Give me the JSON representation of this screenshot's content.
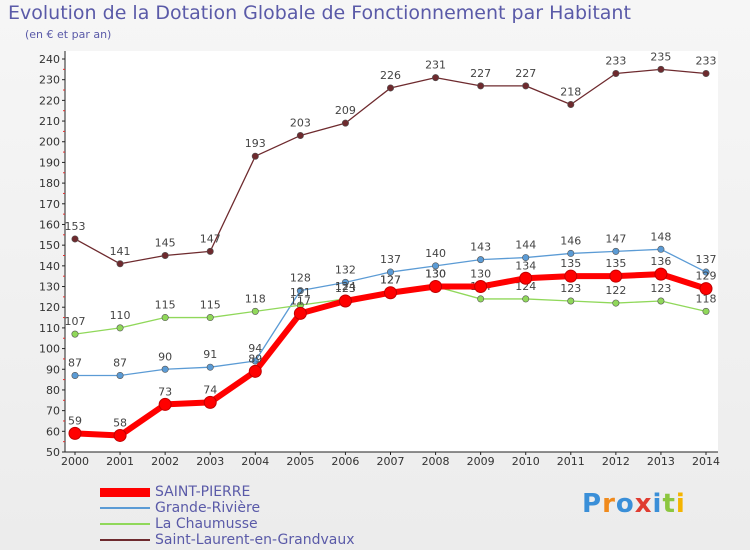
{
  "title": "Evolution de la Dotation Globale de Fonctionnement par Habitant",
  "subtitle": "(en € et par an)",
  "logo_text": "Proxiti",
  "chart_data": {
    "type": "line",
    "title": "Evolution de la Dotation Globale de Fonctionnement par Habitant",
    "ylabel": "(en € et par an)",
    "xlabel": "",
    "ylim": [
      50,
      240
    ],
    "ytick_step": 10,
    "grid": false,
    "x": [
      "2000",
      "2001",
      "2002",
      "2003",
      "2004",
      "2005",
      "2006",
      "2007",
      "2008",
      "2009",
      "2010",
      "2011",
      "2012",
      "2013",
      "2014"
    ],
    "series": [
      {
        "name": "Saint-Laurent-en-Grandvaux",
        "color": "#6e2a2e",
        "values": [
          153,
          141,
          145,
          147,
          193,
          203,
          209,
          226,
          231,
          227,
          227,
          218,
          233,
          235,
          233
        ],
        "labels": [
          "153",
          "141",
          "145",
          "147",
          "193",
          "203",
          "209",
          "226",
          "231",
          "227",
          "227",
          "218",
          "233",
          "235",
          "233"
        ]
      },
      {
        "name": "Grande-Rivière",
        "color": "#5b9bd5",
        "values": [
          87,
          87,
          90,
          91,
          94,
          128,
          132,
          137,
          140,
          143,
          144,
          146,
          147,
          148,
          137
        ],
        "labels": [
          "87",
          "87",
          "90",
          "91",
          "94",
          "128",
          "132",
          "137",
          "140",
          "143",
          "144",
          "146",
          "147",
          "148",
          "137"
        ]
      },
      {
        "name": "La Chaumusse",
        "color": "#90d85a",
        "values": [
          107,
          110,
          115,
          115,
          118,
          121,
          124,
          127,
          130,
          124,
          124,
          123,
          122,
          123,
          118
        ],
        "labels": [
          "107",
          "110",
          "115",
          "115",
          "118",
          "121",
          "124",
          "127",
          "130",
          "124",
          "124",
          "123",
          "122",
          "123",
          "118"
        ]
      },
      {
        "name": "SAINT-PIERRE",
        "color": "#ff0000",
        "values": [
          59,
          58,
          73,
          74,
          89,
          117,
          123,
          127,
          130,
          130,
          134,
          135,
          135,
          136,
          129
        ],
        "labels": [
          "59",
          "58",
          "73",
          "74",
          "89",
          "117",
          "123",
          "127",
          "130",
          "130",
          "134",
          "135",
          "135",
          "136",
          "129"
        ]
      }
    ]
  },
  "legend": [
    {
      "name": "SAINT-PIERRE",
      "color": "#ff0000"
    },
    {
      "name": "Grande-Rivière",
      "color": "#5b9bd5"
    },
    {
      "name": "La Chaumusse",
      "color": "#90d85a"
    },
    {
      "name": "Saint-Laurent-en-Grandvaux",
      "color": "#6e2a2e"
    }
  ]
}
